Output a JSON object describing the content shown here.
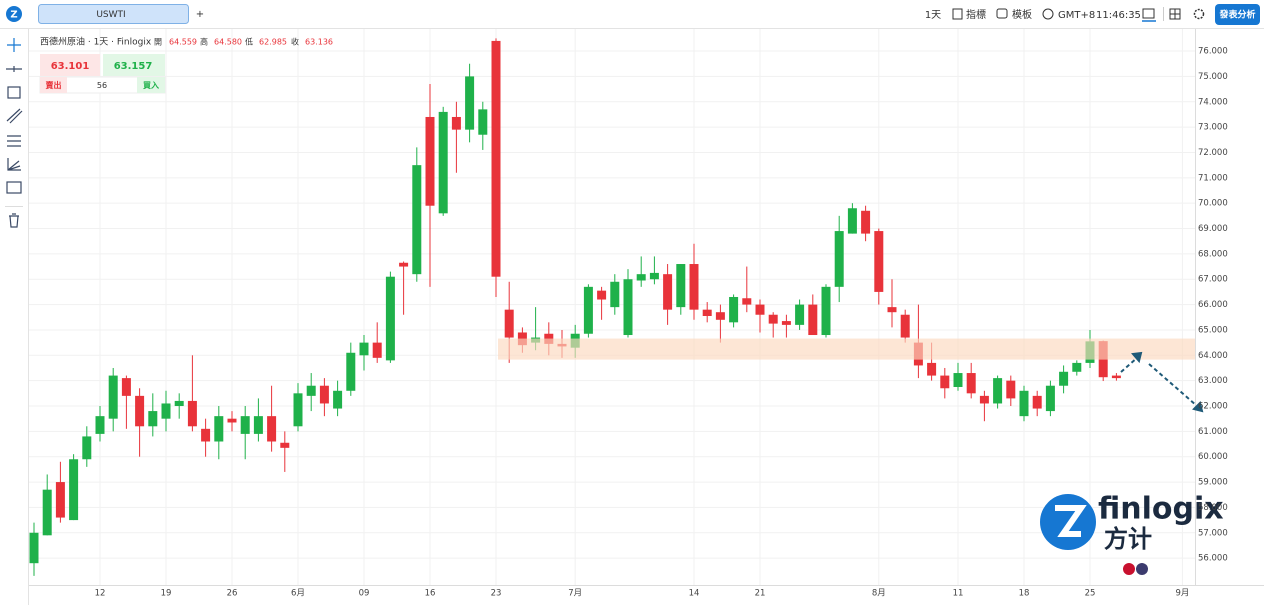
{
  "top_bar": {
    "symbol_tab": "USWTI",
    "add_tab": "+",
    "interval": "1天",
    "indicators": "指標",
    "templates": "模板",
    "timezone": "GMT+8",
    "clock": "11:46:35",
    "publish": "發表分析"
  },
  "legend_header": {
    "title": "西德州原油 · 1天 · Finlogix",
    "open_label": "開",
    "open": "64.559",
    "high_label": "高",
    "high": "64.580",
    "low_label": "低",
    "low": "62.985",
    "close_label": "收",
    "close": "63.136"
  },
  "trade_box": {
    "sell_price": "63.101",
    "buy_price": "63.157",
    "sell_label": "賣出",
    "spread": "56",
    "buy_label": "買入"
  },
  "logo": {
    "brand": "finlogix",
    "brand_cn": "方计"
  },
  "chart_data": {
    "type": "candlestick",
    "categories": [
      null,
      null,
      null,
      null,
      null,
      "12",
      null,
      null,
      null,
      null,
      "19",
      null,
      null,
      null,
      null,
      "26",
      null,
      null,
      null,
      null,
      "6月",
      null,
      null,
      null,
      null,
      "09",
      null,
      null,
      null,
      null,
      "16",
      null,
      null,
      null,
      null,
      "23",
      null,
      null,
      null,
      null,
      null,
      "7月",
      null,
      null,
      null,
      null,
      null,
      null,
      null,
      null,
      "14",
      null,
      null,
      null,
      null,
      "21",
      null,
      null,
      null,
      null,
      null,
      null,
      null,
      null,
      "8月",
      null,
      null,
      null,
      null,
      null,
      "11",
      null,
      null,
      null,
      null,
      "18",
      null,
      null,
      null,
      null,
      "25",
      null,
      null,
      null,
      null,
      null,
      null,
      "9月"
    ],
    "open": [
      55.8,
      56.9,
      59.0,
      57.5,
      59.9,
      60.9,
      61.5,
      63.1,
      62.4,
      61.2,
      61.5,
      62.0,
      62.2,
      61.1,
      60.6,
      61.5,
      60.9,
      60.9,
      61.6,
      60.55,
      61.2,
      62.4,
      62.8,
      61.9,
      62.6,
      64.0,
      64.5,
      63.8,
      67.65,
      67.2,
      73.4,
      69.6,
      73.4,
      72.9,
      72.7,
      76.4,
      65.8,
      64.9,
      64.5,
      64.85,
      64.45,
      64.3,
      64.85,
      66.55,
      65.9,
      64.8,
      66.95,
      67.0,
      67.2,
      65.9,
      67.6,
      65.8,
      65.7,
      65.3,
      66.25,
      66.0,
      65.6,
      65.35,
      65.2,
      66.0,
      64.8,
      66.7,
      68.8,
      69.7,
      68.9,
      65.9,
      65.6,
      64.5,
      63.7,
      63.2,
      62.75,
      63.3,
      62.4,
      62.1,
      63.0,
      61.6,
      62.4,
      61.8,
      62.8,
      63.35,
      63.7,
      64.559,
      63.2,
      null,
      null,
      null,
      null,
      null
    ],
    "high": [
      57.4,
      59.3,
      59.8,
      60.1,
      61.2,
      62.0,
      63.5,
      63.2,
      62.7,
      62.5,
      62.6,
      62.5,
      64.0,
      61.5,
      62.0,
      61.8,
      62.0,
      62.3,
      62.8,
      61.0,
      62.9,
      63.3,
      63.1,
      63.0,
      64.5,
      64.8,
      65.3,
      67.3,
      67.7,
      72.2,
      74.7,
      73.8,
      74.0,
      75.5,
      74.0,
      76.5,
      66.9,
      65.1,
      65.9,
      65.3,
      65.0,
      65.2,
      66.8,
      66.7,
      67.2,
      67.4,
      67.9,
      67.9,
      67.6,
      67.6,
      68.4,
      66.1,
      66.0,
      66.4,
      67.5,
      66.2,
      65.7,
      65.6,
      66.2,
      66.4,
      66.8,
      69.5,
      70.0,
      69.9,
      69.0,
      67.0,
      65.8,
      66.0,
      64.5,
      63.5,
      63.7,
      63.7,
      62.6,
      63.2,
      63.2,
      62.8,
      62.6,
      63.0,
      63.6,
      63.8,
      65.0,
      64.58,
      63.3,
      null,
      null,
      null,
      null,
      null
    ],
    "low": [
      55.3,
      56.9,
      57.4,
      57.5,
      59.6,
      60.6,
      61.0,
      61.1,
      60.0,
      60.8,
      61.0,
      61.5,
      61.0,
      60.0,
      59.9,
      61.0,
      59.9,
      60.6,
      60.2,
      59.4,
      61.0,
      61.8,
      61.6,
      61.6,
      62.4,
      63.4,
      63.7,
      63.7,
      65.6,
      66.9,
      66.7,
      69.5,
      71.2,
      72.4,
      72.1,
      66.3,
      63.7,
      64.1,
      64.2,
      64.0,
      63.9,
      63.9,
      64.7,
      65.4,
      65.6,
      64.7,
      66.7,
      66.8,
      65.2,
      65.6,
      65.4,
      65.3,
      64.5,
      65.1,
      65.7,
      64.9,
      64.7,
      64.7,
      65.0,
      64.8,
      64.7,
      66.1,
      68.8,
      68.5,
      66.0,
      65.1,
      64.5,
      63.1,
      63.0,
      62.3,
      62.6,
      62.3,
      61.4,
      61.9,
      62.0,
      61.4,
      61.6,
      61.6,
      62.5,
      63.2,
      63.5,
      62.985,
      63.0,
      null,
      null,
      null,
      null,
      null
    ],
    "close": [
      57.0,
      58.7,
      57.6,
      59.9,
      60.8,
      61.6,
      63.2,
      62.4,
      61.2,
      61.8,
      62.1,
      62.2,
      61.2,
      60.6,
      61.6,
      61.35,
      61.6,
      61.6,
      60.6,
      60.35,
      62.5,
      62.8,
      62.1,
      62.6,
      64.1,
      64.5,
      63.9,
      67.1,
      67.5,
      71.5,
      69.9,
      73.6,
      72.9,
      75.0,
      73.7,
      67.1,
      64.7,
      64.4,
      64.7,
      64.45,
      64.35,
      64.85,
      66.7,
      66.2,
      66.9,
      67.0,
      67.2,
      67.25,
      65.8,
      67.6,
      65.8,
      65.55,
      65.4,
      66.3,
      66.0,
      65.6,
      65.25,
      65.2,
      66.0,
      64.8,
      66.7,
      68.9,
      69.8,
      68.8,
      66.5,
      65.7,
      64.7,
      63.6,
      63.2,
      62.7,
      63.3,
      62.5,
      62.1,
      63.1,
      62.3,
      62.6,
      61.9,
      62.8,
      63.35,
      63.7,
      64.55,
      63.136,
      63.1,
      null,
      null,
      null,
      null,
      null
    ],
    "up_color": "#1fb14a",
    "down_color": "#e8333a",
    "highlight_zone": {
      "low": 63.83,
      "high": 64.66,
      "color": "#fcd9bf"
    },
    "ylim": [
      54.94,
      76.87
    ],
    "yticks": [
      {
        "value": 56,
        "label": "56.000"
      },
      {
        "value": 57,
        "label": "57.000"
      },
      {
        "value": 58,
        "label": "58.000"
      },
      {
        "value": 59,
        "label": "59.000"
      },
      {
        "value": 60,
        "label": "60.000"
      },
      {
        "value": 61,
        "label": "61.000"
      },
      {
        "value": 62,
        "label": "62.000"
      },
      {
        "value": 63,
        "label": "63.000"
      },
      {
        "value": 64,
        "label": "64.000"
      },
      {
        "value": 65,
        "label": "65.000"
      },
      {
        "value": 66,
        "label": "66.000"
      },
      {
        "value": 67,
        "label": "67.000"
      },
      {
        "value": 68,
        "label": "68.000"
      },
      {
        "value": 69,
        "label": "69.000"
      },
      {
        "value": 70,
        "label": "70.000"
      },
      {
        "value": 71,
        "label": "71.000"
      },
      {
        "value": 72,
        "label": "72.000"
      },
      {
        "value": 73,
        "label": "73.000"
      },
      {
        "value": 74,
        "label": "74.000"
      },
      {
        "value": 75,
        "label": "75.000"
      },
      {
        "value": 76,
        "label": "76.000"
      }
    ],
    "grid": true
  }
}
